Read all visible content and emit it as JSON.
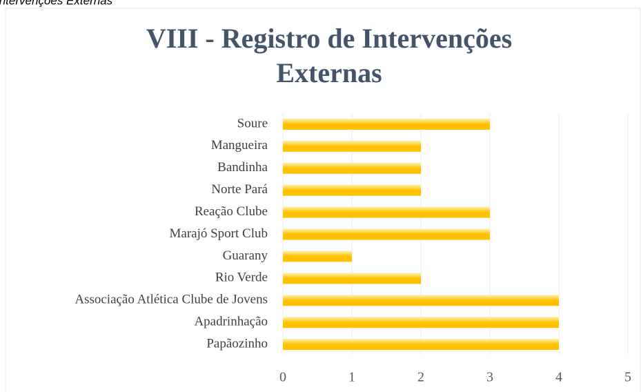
{
  "header_text": "Intervenções Externas",
  "chart_data": {
    "type": "bar",
    "orientation": "horizontal",
    "title": [
      "VIII - Registro de Intervenções",
      "Externas"
    ],
    "categories": [
      "Soure",
      "Mangueira",
      "Bandinha",
      "Norte Pará",
      "Reação Clube",
      "Marajó Sport Club",
      "Guarany",
      "Rio Verde",
      "Associação Atlética Clube de Jovens",
      "Apadrinhação",
      "Papãozinho"
    ],
    "values": [
      3,
      2,
      2,
      2,
      3,
      3,
      1,
      2,
      4,
      4,
      4
    ],
    "color": "#ffc000",
    "xlim": [
      0,
      5
    ],
    "xticks": [
      0,
      1,
      2,
      3,
      4,
      5
    ],
    "grid": true
  }
}
